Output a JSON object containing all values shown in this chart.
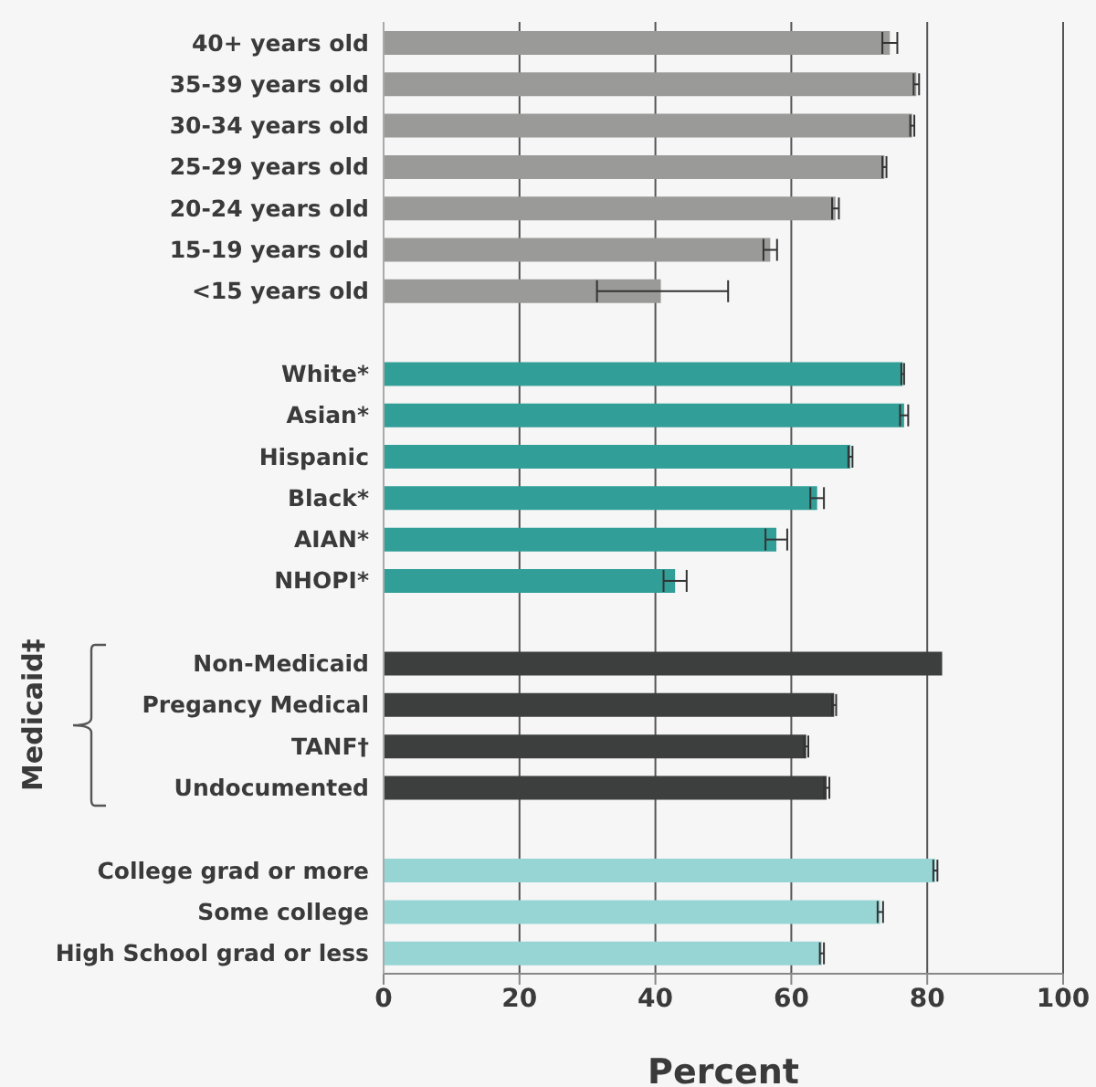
{
  "chart_data": {
    "type": "bar",
    "orientation": "horizontal",
    "xlabel": "Percent",
    "categories": [
      "40+ years old",
      "35-39 years old",
      "30-34 years old",
      "25-29 years old",
      "20-24 years old",
      "15-19 years old",
      "<15 years old",
      null,
      "White*",
      "Asian*",
      "Hispanic",
      "Black*",
      "AIAN*",
      "NHOPI*",
      null,
      "Non-Medicaid",
      "Pregancy Medical",
      "TANF†",
      "Undocumented",
      null,
      "College grad or more",
      "Some college",
      "High School grad or less"
    ],
    "values": [
      74.5,
      78.4,
      77.8,
      73.7,
      66.5,
      56.9,
      40.8,
      null,
      76.4,
      76.6,
      68.7,
      63.8,
      57.8,
      42.9,
      null,
      82.2,
      66.3,
      62.2,
      65.2,
      null,
      81.2,
      73.1,
      64.5
    ],
    "errors": [
      1.1,
      0.4,
      0.3,
      0.3,
      0.5,
      1,
      [
        31.4,
        50.7
      ],
      null,
      0.2,
      0.6,
      0.3,
      1,
      1.6,
      1.7,
      null,
      null,
      0.3,
      0.3,
      0.4,
      null,
      0.3,
      0.4,
      0.3
    ],
    "colors": [
      "#9a9a98",
      "#9a9a98",
      "#9a9a98",
      "#9a9a98",
      "#9a9a98",
      "#9a9a98",
      "#9a9a98",
      "#9a9a98",
      "#329e98",
      "#329e98",
      "#329e98",
      "#329e98",
      "#329e98",
      "#329e98",
      "#329e98",
      "#3d3f3e",
      "#3d3f3e",
      "#3d3f3e",
      "#3d3f3e",
      "#3d3f3e",
      "#97d5d5",
      "#97d5d5",
      "#97d5d5"
    ],
    "xlim": [
      0,
      100
    ],
    "xticks": [
      0,
      20,
      40,
      60,
      80,
      100
    ],
    "grid": "x",
    "annotations": [
      "Medicaid‡"
    ]
  }
}
